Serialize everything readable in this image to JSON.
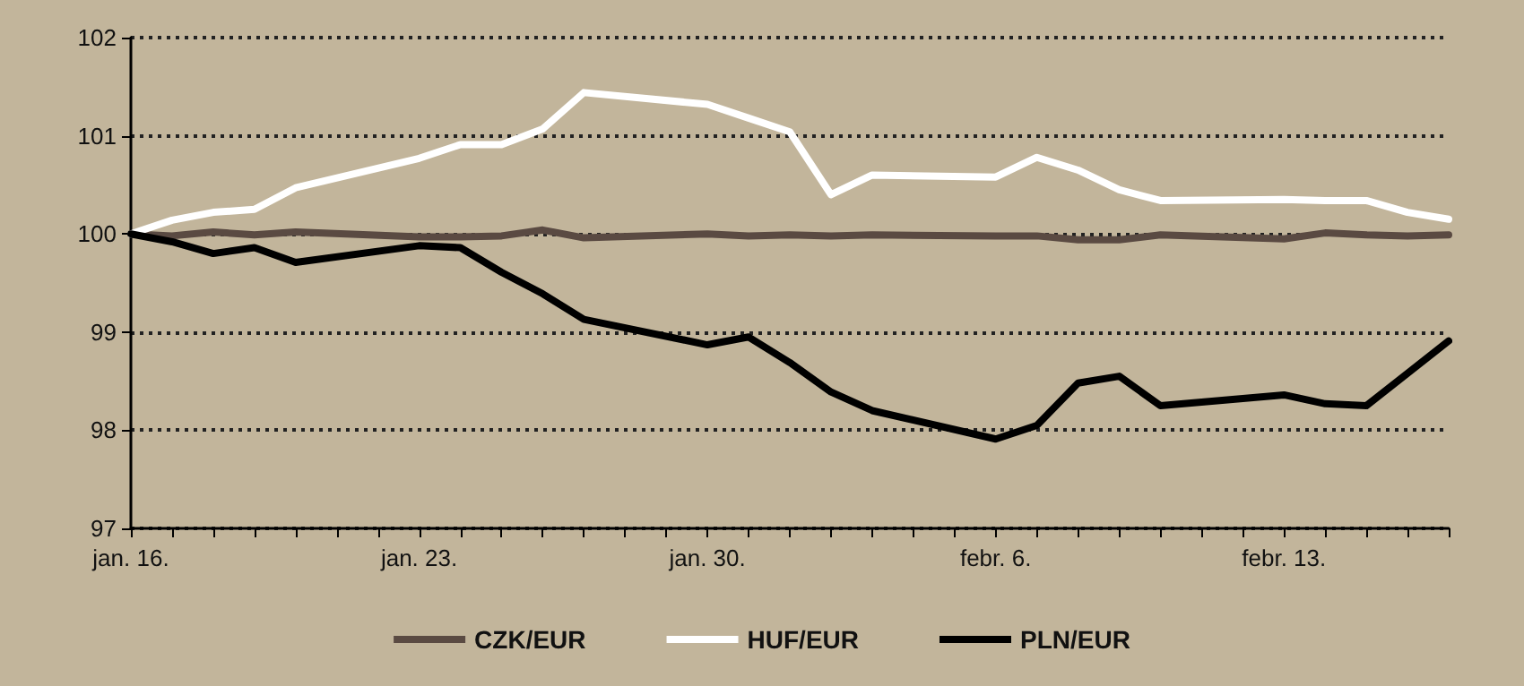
{
  "chart_data": {
    "type": "line",
    "x": [
      "--01-16",
      "--01-17",
      "--01-18",
      "--01-19",
      "--01-20",
      "--01-23",
      "--01-24",
      "--01-25",
      "--01-26",
      "--01-27",
      "--01-30",
      "--01-31",
      "--02-01",
      "--02-02",
      "--02-03",
      "--02-06",
      "--02-07",
      "--02-08",
      "--02-09",
      "--02-10",
      "--02-13",
      "--02-14",
      "--02-15",
      "--02-16",
      "--02-17"
    ],
    "series": [
      {
        "name": "CZK/EUR",
        "color": "#5a4a42",
        "values": [
          100,
          99.98,
          100.02,
          99.99,
          100.02,
          99.97,
          99.97,
          99.98,
          100.04,
          99.96,
          100.0,
          99.98,
          99.99,
          99.98,
          99.99,
          99.98,
          99.98,
          99.94,
          99.94,
          99.99,
          99.95,
          100.01,
          99.99,
          99.98,
          99.99
        ]
      },
      {
        "name": "HUF/EUR",
        "color": "#ffffff",
        "values": [
          100,
          100.14,
          100.22,
          100.25,
          100.47,
          100.77,
          100.91,
          100.91,
          101.07,
          101.44,
          101.32,
          101.18,
          101.04,
          100.4,
          100.6,
          100.58,
          100.78,
          100.65,
          100.45,
          100.34,
          100.35,
          100.34,
          100.34,
          100.22,
          100.15
        ]
      },
      {
        "name": "PLN/EUR",
        "color": "#000000",
        "values": [
          100,
          99.92,
          99.8,
          99.86,
          99.71,
          99.88,
          99.86,
          99.61,
          99.39,
          99.13,
          98.87,
          98.95,
          98.69,
          98.39,
          98.2,
          97.91,
          98.05,
          98.48,
          98.55,
          98.25,
          98.36,
          98.27,
          98.25,
          98.58,
          98.91
        ]
      }
    ],
    "xlim": [
      "--01-16",
      "--02-17"
    ],
    "xticks": [
      {
        "value": "--01-16",
        "label": "jan. 16."
      },
      {
        "value": "--01-17",
        "label": null
      },
      {
        "value": "--01-18",
        "label": null
      },
      {
        "value": "--01-19",
        "label": null
      },
      {
        "value": "--01-20",
        "label": null
      },
      {
        "value": "--01-21",
        "label": null
      },
      {
        "value": "--01-22",
        "label": null
      },
      {
        "value": "--01-23",
        "label": "jan. 23."
      },
      {
        "value": "--01-24",
        "label": null
      },
      {
        "value": "--01-25",
        "label": null
      },
      {
        "value": "--01-26",
        "label": null
      },
      {
        "value": "--01-27",
        "label": null
      },
      {
        "value": "--01-28",
        "label": null
      },
      {
        "value": "--01-29",
        "label": null
      },
      {
        "value": "--01-30",
        "label": "jan. 30."
      },
      {
        "value": "--01-31",
        "label": null
      },
      {
        "value": "--02-01",
        "label": null
      },
      {
        "value": "--02-02",
        "label": null
      },
      {
        "value": "--02-03",
        "label": null
      },
      {
        "value": "--02-04",
        "label": null
      },
      {
        "value": "--02-05",
        "label": null
      },
      {
        "value": "--02-06",
        "label": "febr. 6."
      },
      {
        "value": "--02-07",
        "label": null
      },
      {
        "value": "--02-08",
        "label": null
      },
      {
        "value": "--02-09",
        "label": null
      },
      {
        "value": "--02-10",
        "label": null
      },
      {
        "value": "--02-11",
        "label": null
      },
      {
        "value": "--02-12",
        "label": null
      },
      {
        "value": "--02-13",
        "label": "febr. 13."
      },
      {
        "value": "--02-14",
        "label": null
      },
      {
        "value": "--02-15",
        "label": null
      },
      {
        "value": "--02-16",
        "label": null
      },
      {
        "value": "--02-17",
        "label": null
      }
    ],
    "ylim": [
      97,
      102
    ],
    "yticks": [
      97,
      98,
      99,
      100,
      101,
      102
    ],
    "grid": "y",
    "legend": "bottom",
    "marker": "none",
    "line_style": "solid"
  }
}
